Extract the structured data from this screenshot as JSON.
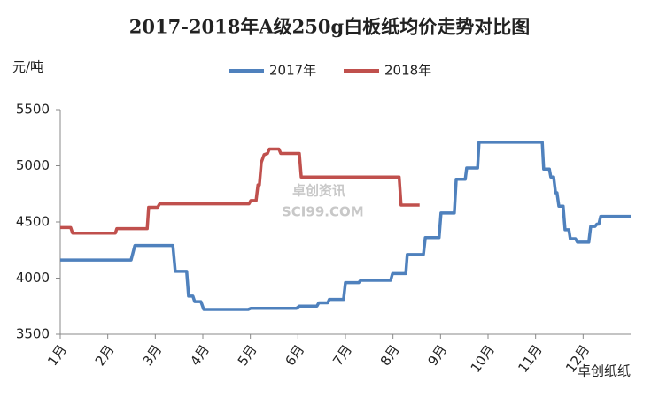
{
  "chart_data": {
    "type": "line",
    "title": "2017-2018年A级250g白板纸均价走势对比图",
    "y_label": "元/吨",
    "watermark": [
      "卓创资讯",
      "SCI99.COM"
    ],
    "corner_mark": "卓创纸纸",
    "xlim": [
      1,
      13
    ],
    "xticks": [
      {
        "value": 1,
        "label": "1月"
      },
      {
        "value": 2,
        "label": "2月"
      },
      {
        "value": 3,
        "label": "3月"
      },
      {
        "value": 4,
        "label": "4月"
      },
      {
        "value": 5,
        "label": "5月"
      },
      {
        "value": 6,
        "label": "6月"
      },
      {
        "value": 7,
        "label": "7月"
      },
      {
        "value": 8,
        "label": "8月"
      },
      {
        "value": 9,
        "label": "9月"
      },
      {
        "value": 10,
        "label": "10月"
      },
      {
        "value": 11,
        "label": "11月"
      },
      {
        "value": 12,
        "label": "12月"
      }
    ],
    "ylim": [
      3500,
      5500
    ],
    "yticks": [
      3500,
      4000,
      4500,
      5000,
      5500
    ],
    "grid": false,
    "legend": "top",
    "series": [
      {
        "name": "2017年",
        "color": "#4f81bd",
        "x": [
          1.0,
          2.49,
          2.57,
          3.37,
          3.42,
          3.66,
          3.7,
          3.79,
          3.83,
          3.96,
          4.02,
          4.95,
          5.01,
          5.97,
          6.03,
          6.4,
          6.44,
          6.63,
          6.66,
          6.96,
          7.0,
          7.28,
          7.32,
          7.95,
          7.99,
          8.27,
          8.3,
          8.64,
          8.68,
          8.97,
          9.01,
          9.29,
          9.33,
          9.52,
          9.55,
          9.78,
          9.81,
          11.14,
          11.17,
          11.29,
          11.32,
          11.38,
          11.42,
          11.45,
          11.49,
          11.58,
          11.62,
          11.7,
          11.73,
          11.84,
          11.88,
          12.12,
          12.16,
          12.25,
          12.29,
          12.33,
          12.37,
          13.0
        ],
        "values": [
          4160,
          4160,
          4290,
          4290,
          4060,
          4060,
          3840,
          3840,
          3790,
          3790,
          3720,
          3720,
          3730,
          3730,
          3750,
          3750,
          3780,
          3780,
          3810,
          3810,
          3960,
          3960,
          3980,
          3980,
          4040,
          4040,
          4210,
          4210,
          4360,
          4360,
          4580,
          4580,
          4880,
          4880,
          4980,
          4980,
          5210,
          5210,
          4970,
          4970,
          4900,
          4900,
          4760,
          4760,
          4640,
          4640,
          4430,
          4430,
          4350,
          4350,
          4320,
          4320,
          4460,
          4460,
          4480,
          4480,
          4550,
          4550
        ]
      },
      {
        "name": "2018年",
        "color": "#c0504d",
        "x": [
          1.0,
          1.22,
          1.26,
          2.16,
          2.19,
          2.83,
          2.86,
          3.05,
          3.09,
          4.97,
          5.01,
          5.12,
          5.16,
          5.19,
          5.23,
          5.29,
          5.36,
          5.4,
          5.6,
          5.64,
          6.03,
          6.07,
          8.13,
          8.17,
          8.56
        ],
        "values": [
          4450,
          4450,
          4400,
          4400,
          4440,
          4440,
          4630,
          4630,
          4660,
          4660,
          4690,
          4690,
          4830,
          4830,
          5030,
          5100,
          5110,
          5150,
          5150,
          5110,
          5110,
          4900,
          4900,
          4650,
          4650
        ]
      }
    ]
  }
}
